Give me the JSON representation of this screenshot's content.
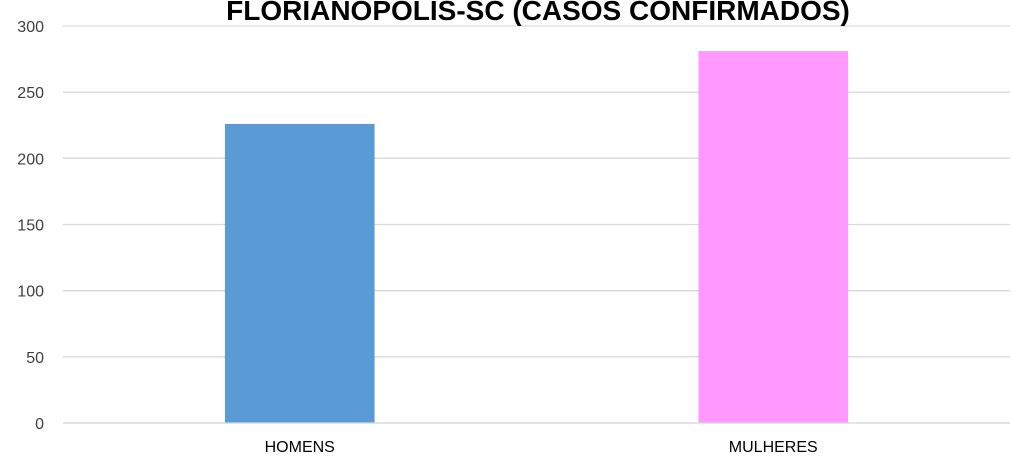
{
  "colors": {
    "homens": "#5b9bd5",
    "mulheres": "#ff99ff",
    "grid": "#d9d9d9"
  },
  "chart_data": {
    "type": "bar",
    "title": "FLORIANÓPOLIS-SC (CASOS CONFIRMADOS)",
    "xlabel": "",
    "ylabel": "",
    "categories": [
      "HOMENS",
      "MULHERES"
    ],
    "values": [
      226,
      281
    ],
    "ylim": [
      0,
      300
    ],
    "yticks": [
      0,
      50,
      100,
      150,
      200,
      250,
      300
    ],
    "grid": true,
    "legend": "none"
  }
}
